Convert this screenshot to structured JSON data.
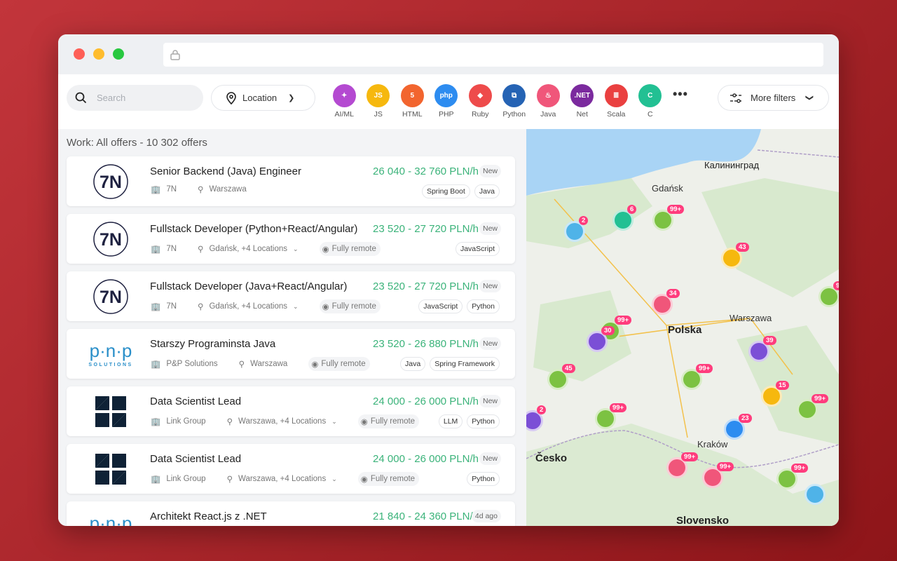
{
  "browser": {
    "url": ""
  },
  "toolbar": {
    "search_placeholder": "Search",
    "location_label": "Location",
    "more_label": "•••",
    "more_filters_label": "More filters",
    "categories": [
      {
        "label": "AI/ML",
        "icon": "✦",
        "color": "#b44ad1"
      },
      {
        "label": "JS",
        "icon": "JS",
        "color": "#f6b80e"
      },
      {
        "label": "HTML",
        "icon": "5",
        "color": "#f2652f"
      },
      {
        "label": "PHP",
        "icon": "php",
        "color": "#2d8cf0"
      },
      {
        "label": "Ruby",
        "icon": "◆",
        "color": "#ee4b4b"
      },
      {
        "label": "Python",
        "icon": "⧉",
        "color": "#2563b4"
      },
      {
        "label": "Java",
        "icon": "♨",
        "color": "#f0567a"
      },
      {
        "label": "Net",
        "icon": ".NET",
        "color": "#7b2a9e"
      },
      {
        "label": "Scala",
        "icon": "≣",
        "color": "#ea4040"
      },
      {
        "label": "C",
        "icon": "C",
        "color": "#22c093"
      }
    ]
  },
  "list": {
    "heading": "Work: All offers - 10 302 offers",
    "offers": [
      {
        "title": "Senior Backend (Java) Engineer",
        "salary": "26 040 - 32 760 PLN/h",
        "badge": "New",
        "company": "7N",
        "location": "Warszawa",
        "remote": "",
        "tags": [
          "Spring Boot",
          "Java"
        ],
        "logo": "7N"
      },
      {
        "title": "Fullstack Developer (Python+React/Angular)",
        "salary": "23 520 - 27 720 PLN/h",
        "badge": "New",
        "company": "7N",
        "location": "Gdańsk, +4 Locations",
        "remote": "Fully remote",
        "tags": [
          "JavaScript"
        ],
        "logo": "7N"
      },
      {
        "title": "Fullstack Developer (Java+React/Angular)",
        "salary": "23 520 - 27 720 PLN/h",
        "badge": "New",
        "company": "7N",
        "location": "Gdańsk, +4 Locations",
        "remote": "Fully remote",
        "tags": [
          "JavaScript",
          "Python"
        ],
        "logo": "7N"
      },
      {
        "title": "Starszy Programinsta Java",
        "salary": "23 520 - 26 880 PLN/h",
        "badge": "New",
        "company": "P&P Solutions",
        "location": "Warszawa",
        "remote": "Fully remote",
        "tags": [
          "Java",
          "Spring Framework"
        ],
        "logo": "pnp"
      },
      {
        "title": "Data Scientist Lead",
        "salary": "24 000 - 26 000 PLN/h",
        "badge": "New",
        "company": "Link Group",
        "location": "Warszawa, +4 Locations",
        "remote": "Fully remote",
        "tags": [
          "LLM",
          "Python"
        ],
        "logo": "link"
      },
      {
        "title": "Data Scientist Lead",
        "salary": "24 000 - 26 000 PLN/h",
        "badge": "New",
        "company": "Link Group",
        "location": "Warszawa, +4 Locations",
        "remote": "Fully remote",
        "tags": [
          "Python"
        ],
        "logo": "link"
      },
      {
        "title": "Architekt React.js z .NET",
        "salary": "21 840 - 24 360 PLN/h",
        "badge": "4d ago",
        "company": "",
        "location": "",
        "remote": "",
        "tags": [],
        "logo": "pnp"
      }
    ]
  },
  "map": {
    "labels": [
      "Калининград",
      "Polska",
      "Česko",
      "Slovensko",
      "Gdańsk",
      "Warszawa",
      "Kraków"
    ],
    "markers": [
      {
        "count": "2",
        "color": "#4fb3e8"
      },
      {
        "count": "6",
        "color": "#22c093"
      },
      {
        "count": "99+",
        "color": "#7cc242"
      },
      {
        "count": "43",
        "color": "#f6b80e"
      },
      {
        "count": "99+",
        "color": "#7cc242"
      },
      {
        "count": "34",
        "color": "#f0567a"
      },
      {
        "count": "99+",
        "color": "#7cc242"
      },
      {
        "count": "30",
        "color": "#7b4fd6"
      },
      {
        "count": "39",
        "color": "#7b4fd6"
      },
      {
        "count": "45",
        "color": "#7cc242"
      },
      {
        "count": "99+",
        "color": "#7cc242"
      },
      {
        "count": "15",
        "color": "#f6b80e"
      },
      {
        "count": "99+",
        "color": "#7cc242"
      },
      {
        "count": "99+",
        "color": "#7cc242"
      },
      {
        "count": "2",
        "color": "#7b4fd6"
      },
      {
        "count": "23",
        "color": "#2d8cf0"
      },
      {
        "count": "99+",
        "color": "#f0567a"
      },
      {
        "count": "99+",
        "color": "#f0567a"
      },
      {
        "count": "99+",
        "color": "#7cc242"
      },
      {
        "count": "",
        "color": "#4fb3e8"
      }
    ]
  }
}
